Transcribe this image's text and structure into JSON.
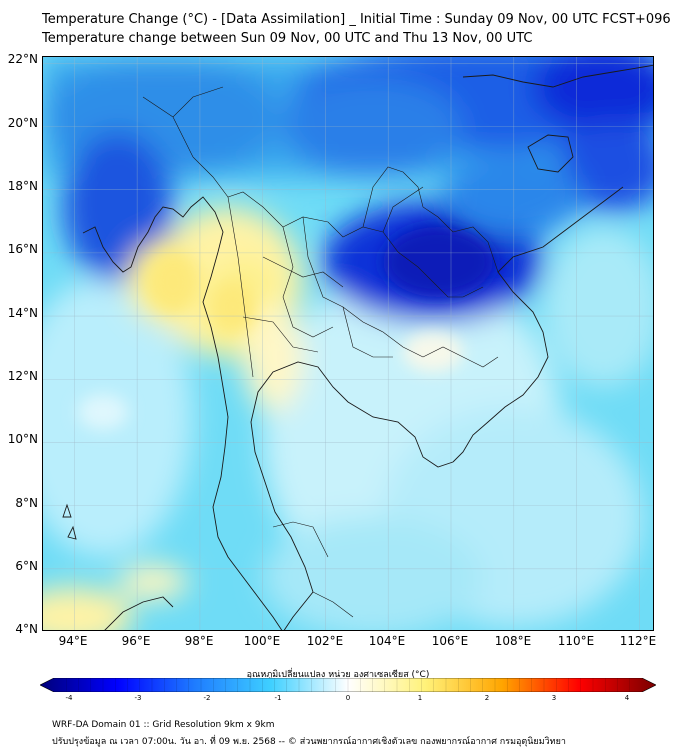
{
  "title_line1": "Temperature Change (°C) - [Data Assimilation] _ Initial Time : Sunday 09 Nov, 00 UTC FCST+096",
  "title_line2": "Temperature change between Sun 09 Nov, 00 UTC and Thu 13 Nov, 00 UTC",
  "map": {
    "lon_range": [
      93,
      112.5
    ],
    "lat_range": [
      4,
      22.2
    ],
    "lat_ticks": [
      "22°N",
      "20°N",
      "18°N",
      "16°N",
      "14°N",
      "12°N",
      "10°N",
      "8°N",
      "6°N",
      "4°N"
    ],
    "lon_ticks": [
      "94°E",
      "96°E",
      "98°E",
      "100°E",
      "102°E",
      "104°E",
      "106°E",
      "108°E",
      "110°E",
      "112°E"
    ],
    "grid": true
  },
  "colorbar": {
    "label": "อุณหภูมิเปลี่ยนแปลง หน่วย องศาเซลเซียส (°C)",
    "ticks": [
      "-4",
      "-3",
      "-2",
      "-1",
      "0",
      "1",
      "2",
      "3",
      "4"
    ],
    "range": [
      -4,
      4
    ],
    "colors": [
      "#00007a",
      "#0000ff",
      "#1e7bff",
      "#3fd0ff",
      "#ffffff",
      "#fff27a",
      "#ffa500",
      "#ff0000",
      "#7a0000"
    ]
  },
  "footer_line1": "WRF-DA Domain 01 :: Grid Resolution 9km x 9km",
  "footer_line2": "ปรับปรุงข้อมูล ณ เวลา 07:00น. วัน อา. ที่ 09 พ.ย. 2568 -- © ส่วนพยากรณ์อากาศเชิงตัวเลข กองพยากรณ์อากาศ กรมอุตุนิยมวิทยา"
}
